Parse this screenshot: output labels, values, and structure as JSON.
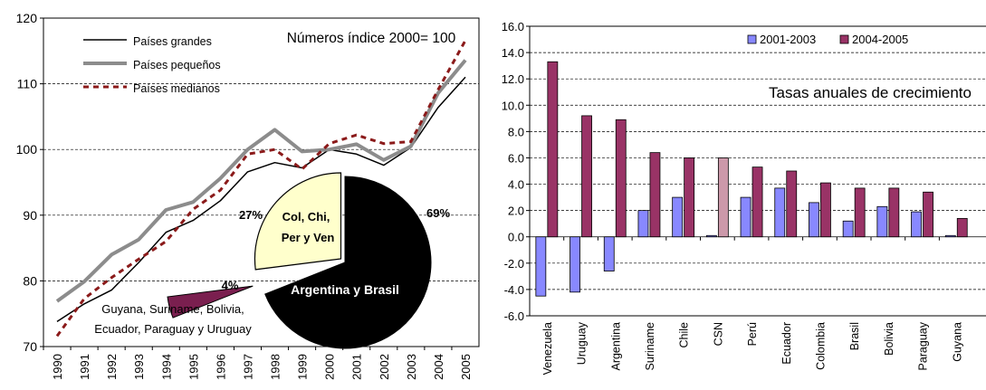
{
  "chart_data": [
    {
      "type": "line",
      "title": "Números índice 2000= 100",
      "x": [
        "1990",
        "1991",
        "1992",
        "1993",
        "1994",
        "1995",
        "1996",
        "1997",
        "1998",
        "1999",
        "2000",
        "2001",
        "2002",
        "2003",
        "2004",
        "2005"
      ],
      "ylim": [
        70,
        120
      ],
      "yticks": [
        70,
        80,
        90,
        100,
        110,
        120
      ],
      "grid": "horizontal",
      "legend_position": "top-left",
      "series": [
        {
          "name": "Países grandes",
          "color": "#000000",
          "style": "solid-thin",
          "values": [
            73.8,
            76.5,
            78.6,
            82.8,
            87.4,
            89.2,
            92.2,
            96.6,
            98.0,
            97.2,
            100.0,
            99.3,
            97.6,
            100.3,
            106.4,
            111.0
          ]
        },
        {
          "name": "Países pequeños",
          "color": "#8c8c8c",
          "style": "solid-thick",
          "values": [
            76.9,
            79.9,
            84.0,
            86.3,
            90.8,
            92.0,
            95.6,
            100.0,
            103.0,
            99.7,
            100.0,
            100.8,
            98.4,
            100.5,
            108.6,
            113.6
          ]
        },
        {
          "name": "Países medianos",
          "color": "#8b1a1a",
          "style": "dashed",
          "values": [
            71.6,
            77.3,
            80.5,
            83.3,
            86.0,
            90.9,
            93.8,
            99.3,
            100.0,
            97.0,
            100.9,
            102.2,
            100.9,
            101.2,
            109.1,
            116.6
          ]
        }
      ]
    },
    {
      "type": "pie",
      "slices": [
        {
          "label": "Argentina y Brasil",
          "percent_label": "69%",
          "value": 69,
          "color": "#000000"
        },
        {
          "label": "Guyana, Suriname, Bolivia, Ecuador, Paraguay y Uruguay",
          "percent_label": "4%",
          "value": 4,
          "color": "#7a1f4f"
        },
        {
          "label_lines": [
            "Col, Chi,",
            "Per y Ven"
          ],
          "percent_label": "27%",
          "value": 27,
          "color": "#ffffcc"
        }
      ],
      "annotation_lines": [
        "Guyana, Suriname, Bolivia,",
        "Ecuador, Paraguay y Uruguay"
      ]
    },
    {
      "type": "bar",
      "title": "Tasas anuales de crecimiento",
      "categories": [
        "Venezuela",
        "Uruguay",
        "Argentina",
        "Suriname",
        "Chile",
        "CSN",
        "Perú",
        "Ecuador",
        "Colombia",
        "Brasil",
        "Bolivia",
        "Paraguay",
        "Guyana"
      ],
      "ylim": [
        -6,
        16
      ],
      "yticks": [
        "-6.0",
        "-4.0",
        "-2.0",
        "0.0",
        "2.0",
        "4.0",
        "6.0",
        "8.0",
        "10.0",
        "12.0",
        "14.0",
        "16.0"
      ],
      "grid": "horizontal-dashed",
      "legend_position": "top-right",
      "series": [
        {
          "name": "2001-2003",
          "color": "#8888ff",
          "values": [
            -4.5,
            -4.2,
            -2.6,
            2.0,
            3.0,
            0.1,
            3.0,
            3.7,
            2.6,
            1.2,
            2.3,
            1.9,
            0.1
          ]
        },
        {
          "name": "2004-2005",
          "color": "#993366",
          "values": [
            13.3,
            9.2,
            8.9,
            6.4,
            6.0,
            6.0,
            5.3,
            5.0,
            4.1,
            3.7,
            3.7,
            3.4,
            1.4
          ]
        }
      ],
      "highlight": {
        "category": "CSN",
        "series": "2004-2005",
        "color": "#cc99aa"
      }
    }
  ]
}
